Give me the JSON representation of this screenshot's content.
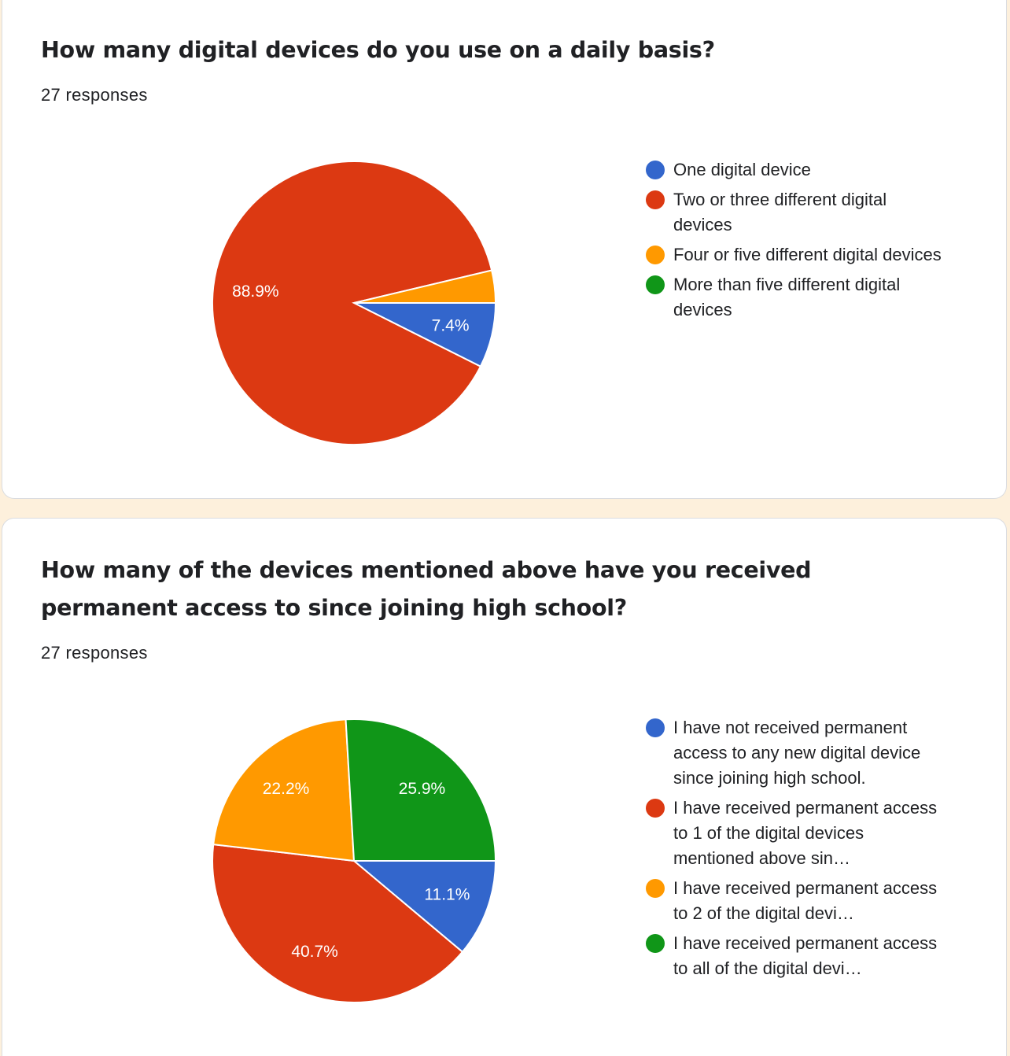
{
  "colors": {
    "blue": "#3366cc",
    "red": "#dc3912",
    "orange": "#ff9900",
    "green": "#109618"
  },
  "questions": [
    {
      "title": "How many digital devices do you use on a daily basis?",
      "responses": "27 responses",
      "chart_data": {
        "type": "pie",
        "categories": [
          "One digital device",
          "Two or three different digital devices",
          "Four or five different digital devices",
          "More than five different digital devices"
        ],
        "values": [
          7.4,
          88.9,
          3.7,
          0
        ],
        "value_labels": [
          "7.4%",
          "88.9%",
          "",
          ""
        ],
        "colors": [
          "#3366cc",
          "#dc3912",
          "#ff9900",
          "#109618"
        ],
        "legend_position": "right"
      }
    },
    {
      "title": "How many of the devices mentioned above have you received permanent access to since joining high school?",
      "responses": "27 responses",
      "chart_data": {
        "type": "pie",
        "categories": [
          "I have not received permanent access to any new digital device since joining high school.",
          "I have received permanent access to 1 of the digital devices mentioned above sin…",
          "I have received permanent access to 2 of the digital devi…",
          "I have received permanent access to all of the digital devi…"
        ],
        "values": [
          11.1,
          40.7,
          22.2,
          25.9
        ],
        "value_labels": [
          "11.1%",
          "40.7%",
          "22.2%",
          "25.9%"
        ],
        "colors": [
          "#3366cc",
          "#dc3912",
          "#ff9900",
          "#109618"
        ],
        "legend_position": "right"
      }
    }
  ]
}
